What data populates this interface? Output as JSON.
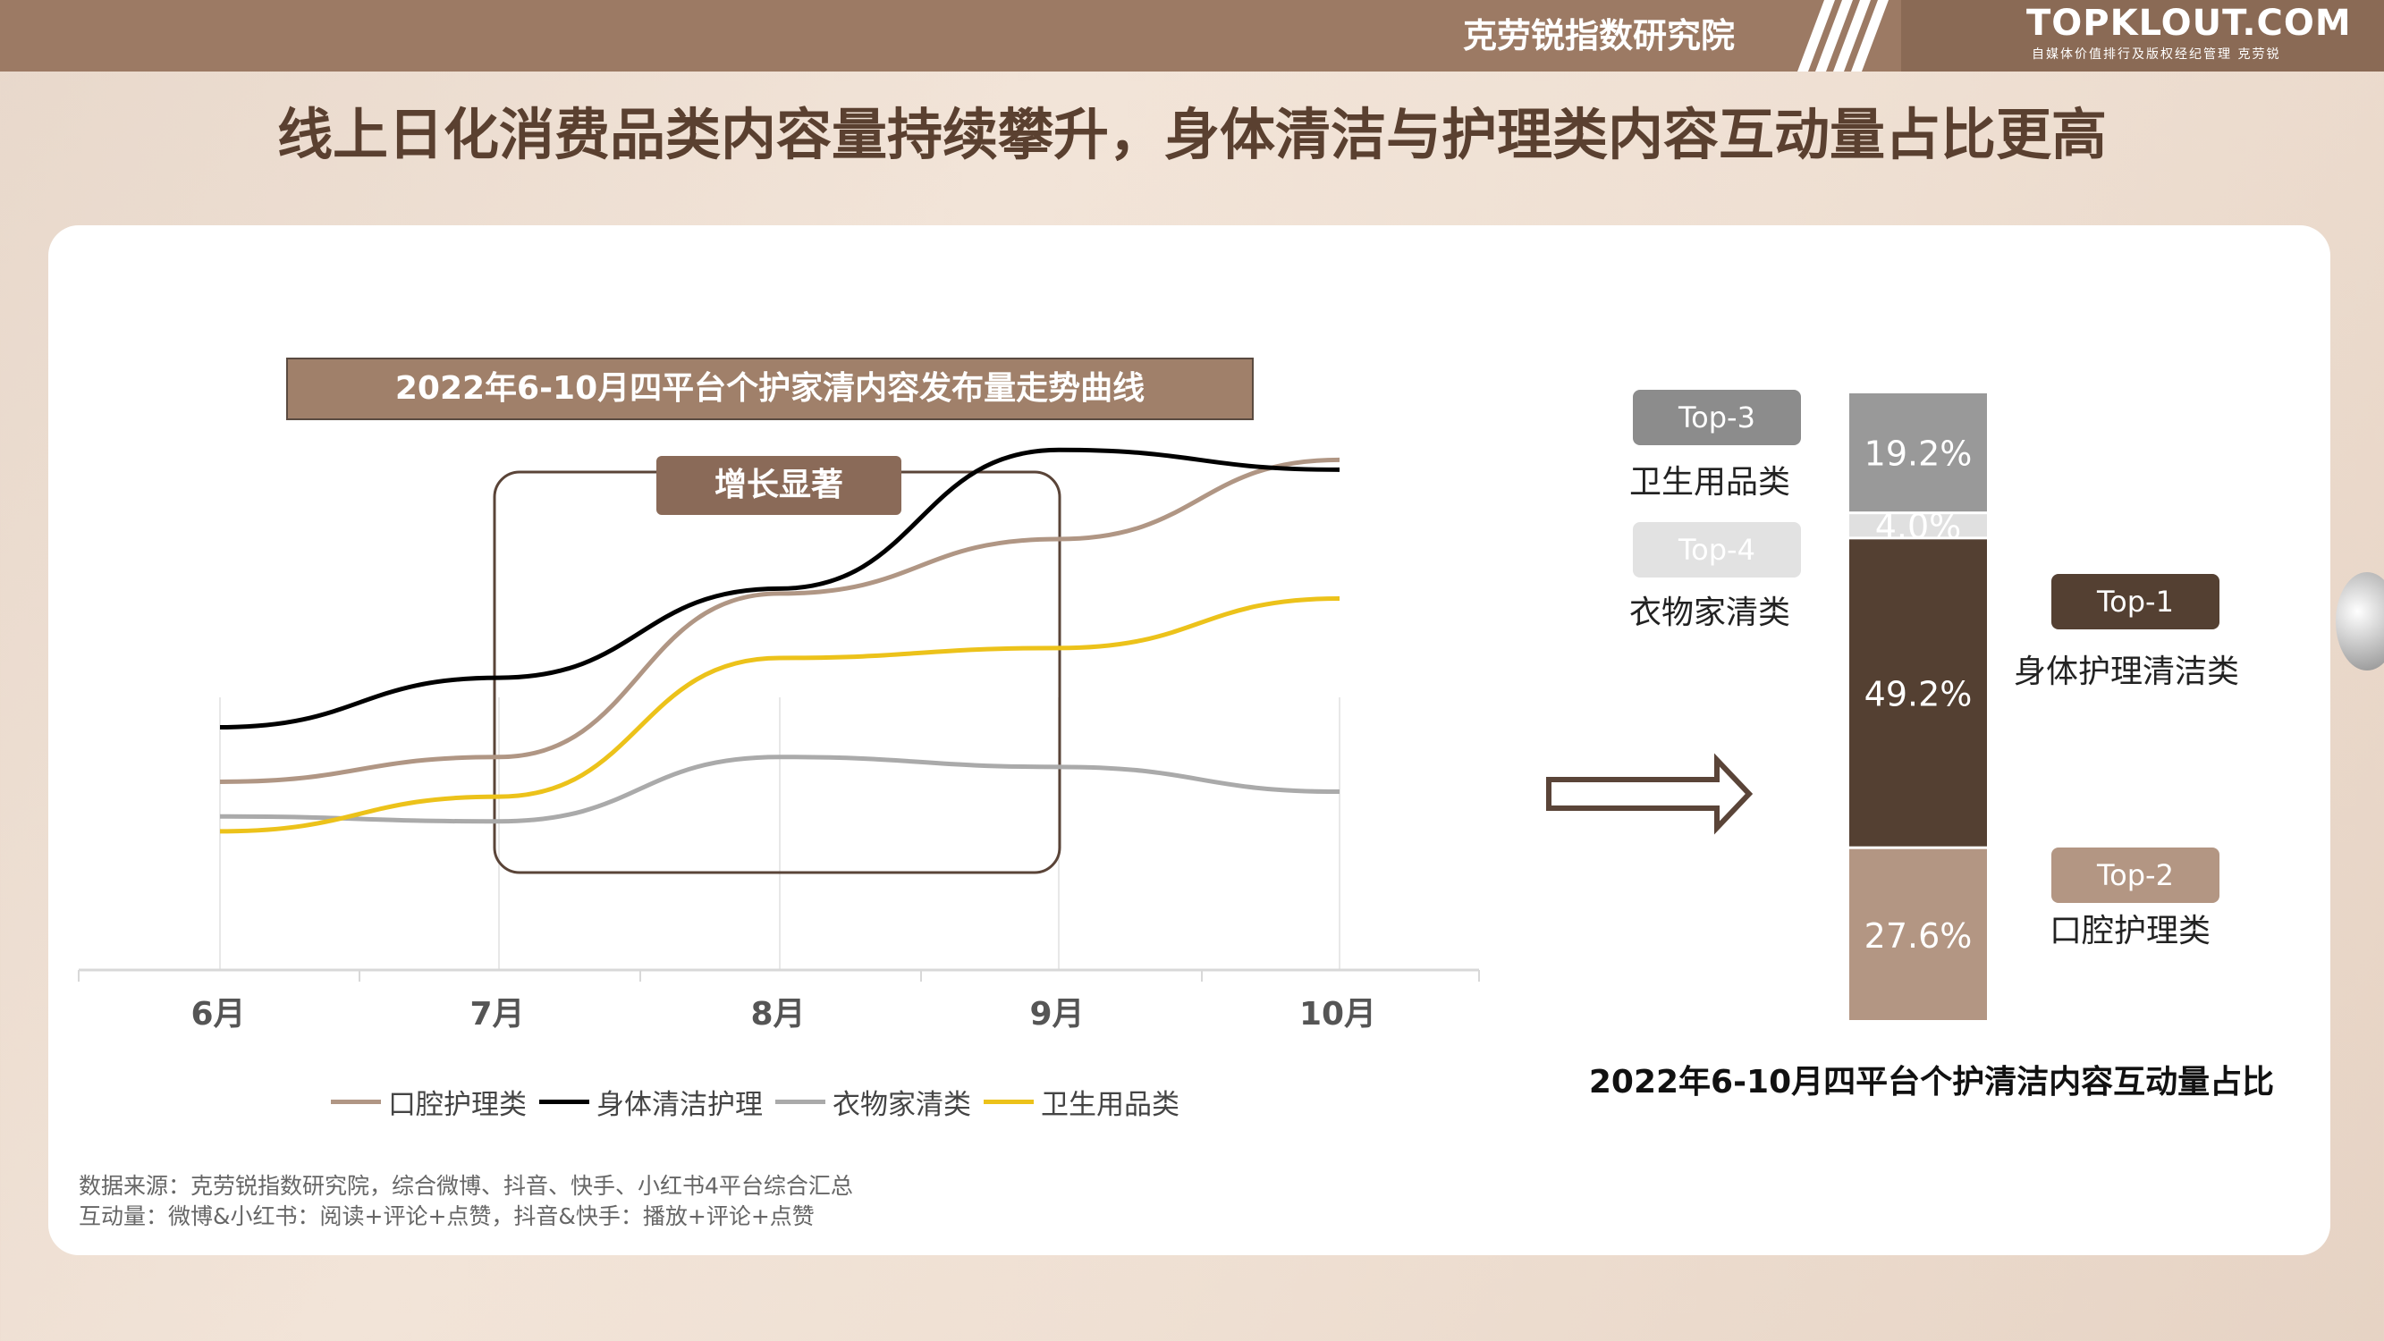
{
  "header": {
    "institute": "克劳锐指数研究院",
    "brand": "TOPKLOUT.COM",
    "tagline": "自媒体价值排行及版权经纪管理 克劳锐"
  },
  "headline": "线上日化消费品类内容量持续攀升，身体清洁与护理类内容互动量占比更高",
  "colors": {
    "oral": "#b09684",
    "body": "#000000",
    "clothing": "#aaaaaa",
    "hygiene": "#ecc21a",
    "dark_brown": "#544032",
    "light_brown": "#b39683",
    "grey": "#999999",
    "light_grey": "#e0e0e0"
  },
  "chart_data": [
    {
      "type": "line",
      "title": "2022年6-10月四平台个护家清内容发布量走势曲线",
      "categories": [
        "6月",
        "7月",
        "8月",
        "9月",
        "10月"
      ],
      "series": [
        {
          "name": "口腔护理类",
          "values": [
            34,
            39,
            72,
            83,
            99
          ]
        },
        {
          "name": "身体清洁护理",
          "values": [
            45,
            55,
            73,
            101,
            97
          ]
        },
        {
          "name": "衣物家清类",
          "values": [
            27,
            26,
            39,
            37,
            32
          ]
        },
        {
          "name": "卫生用品类",
          "values": [
            24,
            31,
            59,
            61,
            71
          ]
        }
      ],
      "ylim": [
        -4,
        107
      ],
      "annotation": "增长显著",
      "legend_position": "bottom",
      "grid": "vertical"
    },
    {
      "type": "bar",
      "title": "2022年6-10月四平台个护清洁内容互动量占比",
      "stacked": true,
      "segments": [
        {
          "name": "口腔护理类",
          "rank": "Top-2",
          "value": 27.6,
          "label": "27.6%"
        },
        {
          "name": "身体护理清洁类",
          "rank": "Top-1",
          "value": 49.2,
          "label": "49.2%"
        },
        {
          "name": "衣物家清类",
          "rank": "Top-4",
          "value": 4.0,
          "label": "4.0%"
        },
        {
          "name": "卫生用品类",
          "rank": "Top-3",
          "value": 19.2,
          "label": "19.2%"
        }
      ]
    }
  ],
  "source": {
    "line1": "数据来源：克劳锐指数研究院，综合微博、抖音、快手、小红书4平台综合汇总",
    "line2": "互动量：微博&小红书：阅读+评论+点赞，抖音&快手：播放+评论+点赞"
  }
}
